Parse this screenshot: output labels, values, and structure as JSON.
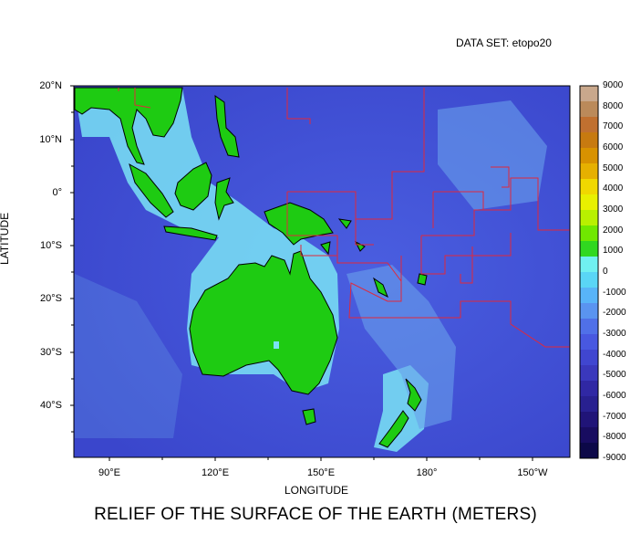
{
  "header": {
    "dataset": "DATA SET: etopo20"
  },
  "title": "RELIEF OF THE SURFACE OF THE EARTH (METERS)",
  "axes": {
    "xlabel": "LONGITUDE",
    "ylabel": "LATITUDE",
    "lat_ticks": [
      "20°N",
      "10°N",
      "0°",
      "10°S",
      "20°S",
      "30°S",
      "40°S"
    ],
    "lon_ticks": [
      "90°E",
      "120°E",
      "150°E",
      "180°",
      "150°W"
    ]
  },
  "map": {
    "lon_range": [
      80,
      220
    ],
    "lat_range": [
      -50,
      20
    ],
    "ocean_color": "#3f52d8",
    "land_color": "#1ecb12",
    "shelf_color": "#6fe6f0",
    "boundary_color": "#e0283c"
  },
  "colorbar": {
    "labels": [
      "9000",
      "8000",
      "7000",
      "6000",
      "5000",
      "4000",
      "3000",
      "2000",
      "1000",
      "0",
      "-1000",
      "-2000",
      "-3000",
      "-4000",
      "-5000",
      "-6000",
      "-7000",
      "-8000",
      "-9000"
    ],
    "colors": [
      "#c9a88c",
      "#bb8a5a",
      "#c07030",
      "#c77a10",
      "#d89200",
      "#e6b000",
      "#f0d800",
      "#e8f000",
      "#b8f000",
      "#70e800",
      "#30d820",
      "#70f0f0",
      "#5ad6f6",
      "#58b4f8",
      "#5a94f0",
      "#5070e8",
      "#4858e0",
      "#4046d0",
      "#3a38bc",
      "#3028a4",
      "#282090",
      "#201478",
      "#180c60",
      "#0c0848"
    ]
  }
}
